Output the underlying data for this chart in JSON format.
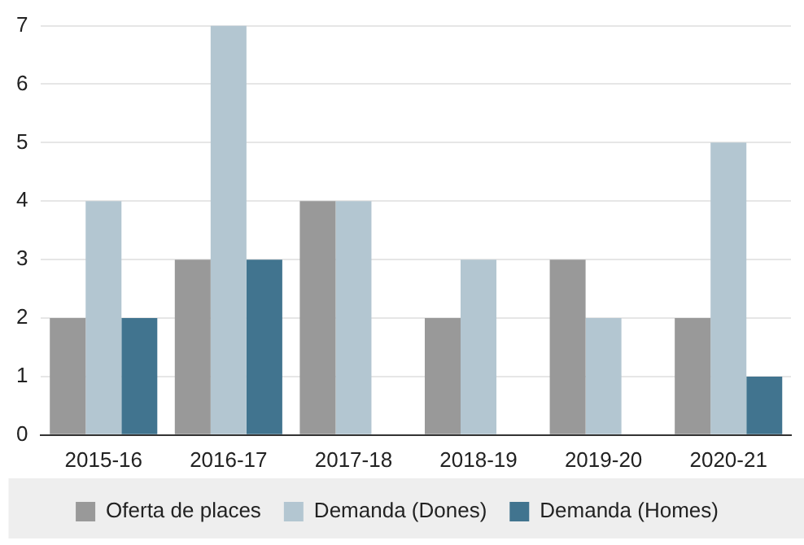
{
  "chart_data": {
    "type": "bar",
    "categories": [
      "2015-16",
      "2016-17",
      "2017-18",
      "2018-19",
      "2019-20",
      "2020-21"
    ],
    "series": [
      {
        "name": "Oferta de places",
        "color": "#999999",
        "values": [
          2,
          3,
          4,
          2,
          3,
          2
        ]
      },
      {
        "name": "Demanda (Dones)",
        "color": "#b3c6d1",
        "values": [
          4,
          7,
          4,
          3,
          2,
          5
        ]
      },
      {
        "name": "Demanda (Homes)",
        "color": "#41748f",
        "values": [
          2,
          3,
          0,
          0,
          0,
          1
        ]
      }
    ],
    "ylim": [
      0,
      7
    ],
    "yticks": [
      0,
      1,
      2,
      3,
      4,
      5,
      6,
      7
    ],
    "grid": "y",
    "legend": "bottom"
  }
}
